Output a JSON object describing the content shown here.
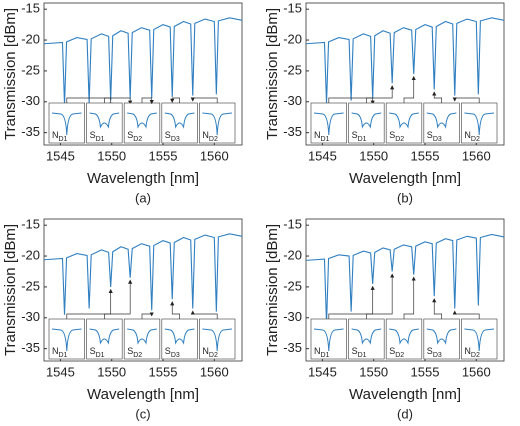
{
  "chart_data": [
    {
      "type": "line",
      "caption": "(a)",
      "x_label": "Wavelength [nm]",
      "y_label": "Transmission [dBm]",
      "color": "#2f7fc1",
      "xlim": [
        1543.4,
        1562.7
      ],
      "ylim": [
        -37,
        -14
      ],
      "xticks": [
        1545,
        1550,
        1555,
        1560
      ],
      "yticks": [
        -35,
        -30,
        -25,
        -20,
        -15
      ],
      "x": [
        1543.4,
        1545.2,
        1545.4,
        1545.6,
        1546.6,
        1547.6,
        1547.8,
        1548.0,
        1549.0,
        1549.7,
        1549.9,
        1550.1,
        1550.9,
        1551.6,
        1551.8,
        1552.0,
        1552.9,
        1553.7,
        1553.9,
        1554.1,
        1555.0,
        1555.7,
        1555.9,
        1556.1,
        1557.0,
        1557.7,
        1557.9,
        1558.1,
        1559.1,
        1560.0,
        1560.2,
        1560.4,
        1561.5,
        1562.7
      ],
      "values": [
        -20.6,
        -20.4,
        -30.5,
        -20.3,
        -19.6,
        -19.9,
        -30.2,
        -19.8,
        -19.0,
        -19.4,
        -29.8,
        -19.3,
        -18.5,
        -18.9,
        -29.5,
        -18.8,
        -18.0,
        -18.4,
        -29.4,
        -18.3,
        -17.5,
        -17.9,
        -29.2,
        -17.8,
        -17.0,
        -17.4,
        -29.0,
        -17.3,
        -16.6,
        -17.0,
        -28.8,
        -16.9,
        -16.4,
        -16.8
      ],
      "inset_labels": [
        {
          "letter": "N",
          "sub": "D1"
        },
        {
          "letter": "S",
          "sub": "D1"
        },
        {
          "letter": "S",
          "sub": "D2"
        },
        {
          "letter": "S",
          "sub": "D3"
        },
        {
          "letter": "N",
          "sub": "D2"
        }
      ]
    },
    {
      "type": "line",
      "caption": "(b)",
      "x_label": "Wavelength [nm]",
      "y_label": "Transmission [dBm]",
      "color": "#2f7fc1",
      "xlim": [
        1543.4,
        1562.7
      ],
      "ylim": [
        -37,
        -14
      ],
      "xticks": [
        1545,
        1550,
        1555,
        1560
      ],
      "yticks": [
        -35,
        -30,
        -25,
        -20,
        -15
      ],
      "x": [
        1543.4,
        1545.2,
        1545.4,
        1545.6,
        1546.6,
        1547.6,
        1547.8,
        1548.0,
        1549.0,
        1549.7,
        1549.9,
        1550.1,
        1550.9,
        1551.6,
        1551.8,
        1552.0,
        1552.9,
        1553.7,
        1553.9,
        1554.1,
        1555.0,
        1555.7,
        1555.9,
        1556.1,
        1557.0,
        1557.7,
        1557.9,
        1558.1,
        1559.1,
        1560.0,
        1560.2,
        1560.4,
        1561.5,
        1562.7
      ],
      "values": [
        -20.6,
        -20.4,
        -30.2,
        -20.3,
        -19.6,
        -19.9,
        -29.8,
        -19.8,
        -19.0,
        -19.4,
        -29.5,
        -19.3,
        -18.5,
        -18.9,
        -27.0,
        -18.8,
        -18.0,
        -18.4,
        -25.5,
        -18.3,
        -17.5,
        -17.9,
        -28.0,
        -17.8,
        -17.0,
        -17.4,
        -29.0,
        -17.3,
        -16.6,
        -17.0,
        -28.8,
        -16.9,
        -16.4,
        -16.8
      ],
      "inset_labels": [
        {
          "letter": "N",
          "sub": "D1"
        },
        {
          "letter": "S",
          "sub": "D1"
        },
        {
          "letter": "S",
          "sub": "D2"
        },
        {
          "letter": "S",
          "sub": "D3"
        },
        {
          "letter": "N",
          "sub": "D2"
        }
      ]
    },
    {
      "type": "line",
      "caption": "(c)",
      "x_label": "Wavelength [nm]",
      "y_label": "Transmission [dBm]",
      "color": "#2f7fc1",
      "xlim": [
        1543.4,
        1562.7
      ],
      "ylim": [
        -37,
        -14
      ],
      "xticks": [
        1545,
        1550,
        1555,
        1560
      ],
      "yticks": [
        -35,
        -30,
        -25,
        -20,
        -15
      ],
      "x": [
        1543.4,
        1545.2,
        1545.4,
        1545.6,
        1546.6,
        1547.6,
        1547.8,
        1548.0,
        1549.0,
        1549.7,
        1549.9,
        1550.1,
        1550.9,
        1551.6,
        1551.8,
        1552.0,
        1552.9,
        1553.7,
        1553.9,
        1554.1,
        1555.0,
        1555.7,
        1555.9,
        1556.1,
        1557.0,
        1557.7,
        1557.9,
        1558.1,
        1559.1,
        1560.0,
        1560.2,
        1560.4,
        1561.5,
        1562.7
      ],
      "values": [
        -20.6,
        -20.4,
        -29.5,
        -20.3,
        -19.6,
        -19.9,
        -28.5,
        -19.8,
        -19.0,
        -19.4,
        -25.0,
        -19.3,
        -18.5,
        -18.9,
        -23.5,
        -18.8,
        -18.0,
        -18.4,
        -28.8,
        -18.3,
        -17.5,
        -17.9,
        -27.0,
        -17.8,
        -17.0,
        -17.4,
        -28.5,
        -17.3,
        -16.6,
        -17.0,
        -29.0,
        -16.9,
        -16.4,
        -16.8
      ],
      "inset_labels": [
        {
          "letter": "N",
          "sub": "D1"
        },
        {
          "letter": "S",
          "sub": "D1"
        },
        {
          "letter": "S",
          "sub": "D2"
        },
        {
          "letter": "S",
          "sub": "D3"
        },
        {
          "letter": "N",
          "sub": "D2"
        }
      ]
    },
    {
      "type": "line",
      "caption": "(d)",
      "x_label": "Wavelength [nm]",
      "y_label": "Transmission [dBm]",
      "color": "#2f7fc1",
      "xlim": [
        1543.4,
        1562.7
      ],
      "ylim": [
        -37,
        -14
      ],
      "xticks": [
        1545,
        1550,
        1555,
        1560
      ],
      "yticks": [
        -35,
        -30,
        -25,
        -20,
        -15
      ],
      "x": [
        1543.4,
        1545.2,
        1545.4,
        1545.6,
        1546.6,
        1547.6,
        1547.8,
        1548.0,
        1549.0,
        1549.7,
        1549.9,
        1550.1,
        1550.9,
        1551.6,
        1551.8,
        1552.0,
        1552.9,
        1553.7,
        1553.9,
        1554.1,
        1555.0,
        1555.7,
        1555.9,
        1556.1,
        1557.0,
        1557.7,
        1557.9,
        1558.1,
        1559.1,
        1560.0,
        1560.2,
        1560.4,
        1561.5,
        1562.7
      ],
      "values": [
        -20.7,
        -20.5,
        -31.0,
        -20.4,
        -19.8,
        -20.0,
        -29.0,
        -19.9,
        -19.2,
        -19.5,
        -24.5,
        -19.4,
        -18.7,
        -19.0,
        -22.5,
        -18.9,
        -18.2,
        -18.5,
        -23.0,
        -18.4,
        -17.7,
        -18.0,
        -26.5,
        -17.9,
        -17.2,
        -17.5,
        -28.5,
        -17.4,
        -16.8,
        -17.1,
        -28.0,
        -17.0,
        -16.5,
        -16.9
      ],
      "inset_labels": [
        {
          "letter": "N",
          "sub": "D1"
        },
        {
          "letter": "S",
          "sub": "D1"
        },
        {
          "letter": "S",
          "sub": "D2"
        },
        {
          "letter": "S",
          "sub": "D3"
        },
        {
          "letter": "N",
          "sub": "D2"
        }
      ]
    }
  ]
}
